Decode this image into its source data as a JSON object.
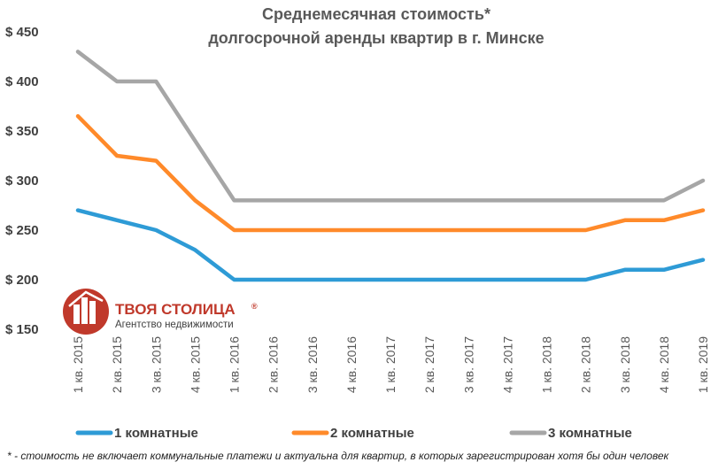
{
  "chart_data": {
    "type": "line",
    "title": "Среднемесячная стоимость*",
    "subtitle": "долгосрочной аренды квартир в г. Минске",
    "categories": [
      "1 кв. 2015",
      "2 кв. 2015",
      "3 кв. 2015",
      "4 кв. 2015",
      "1 кв. 2016",
      "2 кв. 2016",
      "3 кв. 2016",
      "4 кв. 2016",
      "1 кв. 2017",
      "2 кв. 2017",
      "3 кв. 2017",
      "4 кв. 2017",
      "1 кв. 2018",
      "2 кв. 2018",
      "3 кв. 2018",
      "4 кв. 2018",
      "1 кв. 2019"
    ],
    "series": [
      {
        "name": "1 комнатные",
        "color": "#2e9bd6",
        "values": [
          270,
          260,
          250,
          230,
          200,
          200,
          200,
          200,
          200,
          200,
          200,
          200,
          200,
          200,
          210,
          210,
          220
        ]
      },
      {
        "name": "2 комнатные",
        "color": "#ff8a2a",
        "values": [
          365,
          325,
          320,
          280,
          250,
          250,
          250,
          250,
          250,
          250,
          250,
          250,
          250,
          250,
          260,
          260,
          270
        ]
      },
      {
        "name": "3 комнатные",
        "color": "#a6a6a6",
        "values": [
          430,
          400,
          400,
          340,
          280,
          280,
          280,
          280,
          280,
          280,
          280,
          280,
          280,
          280,
          280,
          280,
          300
        ]
      }
    ],
    "yticks": [
      "$ 450",
      "$ 400",
      "$ 350",
      "$ 300",
      "$ 250",
      "$ 200",
      "$ 150"
    ],
    "ytick_values": [
      450,
      400,
      350,
      300,
      250,
      200,
      150
    ],
    "ylim": [
      150,
      450
    ],
    "grid": false,
    "legend_position": "bottom",
    "footnote": "* - стоимость не включает коммунальные платежи и актуальна для квартир, в которых зарегистрирован хотя бы один человек"
  },
  "logo": {
    "name": "ТВОЯ СТОЛИЦА",
    "registered": "®",
    "tagline": "Агентство недвижимости",
    "color": "#c0392b"
  }
}
